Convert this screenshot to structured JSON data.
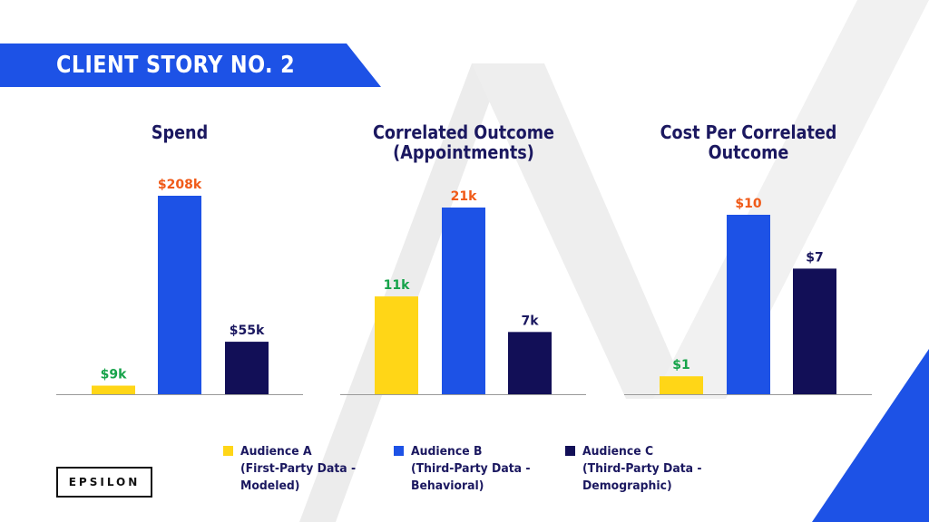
{
  "banner": {
    "title": "CLIENT STORY NO. 2"
  },
  "colors": {
    "audience_a": "#ffd617",
    "audience_b": "#1d52e6",
    "audience_c": "#120f57",
    "label_green": "#16a34a",
    "label_orange": "#f05a18",
    "label_navy": "#1b1860"
  },
  "chart_data": [
    {
      "type": "bar",
      "title": "Spend",
      "categories": [
        "Audience A",
        "Audience B",
        "Audience C"
      ],
      "values": [
        9,
        208,
        55
      ],
      "labels": [
        "$9k",
        "$208k",
        "$55k"
      ],
      "label_colors": [
        "label_green",
        "label_orange",
        "label_navy"
      ],
      "unit": "$k"
    },
    {
      "type": "bar",
      "title": "Correlated Outcome\n(Appointments)",
      "categories": [
        "Audience A",
        "Audience B",
        "Audience C"
      ],
      "values": [
        11,
        21,
        7
      ],
      "labels": [
        "11k",
        "21k",
        "7k"
      ],
      "label_colors": [
        "label_green",
        "label_orange",
        "label_navy"
      ],
      "unit": "k"
    },
    {
      "type": "bar",
      "title": "Cost Per Correlated\nOutcome",
      "categories": [
        "Audience A",
        "Audience B",
        "Audience C"
      ],
      "values": [
        1,
        10,
        7
      ],
      "labels": [
        "$1",
        "$10",
        "$7"
      ],
      "label_colors": [
        "label_green",
        "label_orange",
        "label_navy"
      ],
      "unit": "$"
    }
  ],
  "legend": [
    {
      "label": "Audience A\n(First-Party Data -\nModeled)",
      "color_key": "audience_a"
    },
    {
      "label": "Audience B\n(Third-Party Data -\nBehavioral)",
      "color_key": "audience_b"
    },
    {
      "label": "Audience C\n(Third-Party Data -\nDemographic)",
      "color_key": "audience_c"
    }
  ],
  "logo": {
    "text": "EPSILON",
    "mark": "·"
  }
}
